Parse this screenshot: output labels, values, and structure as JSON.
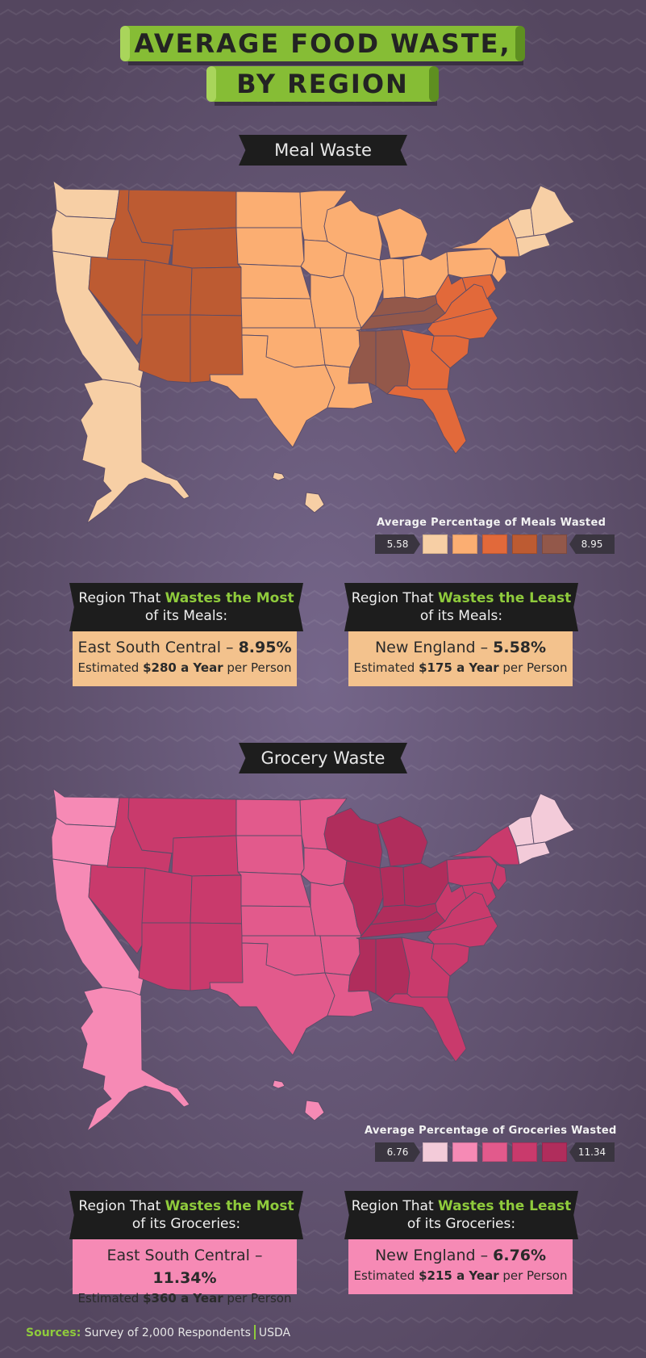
{
  "title": {
    "line1": "AVERAGE FOOD WASTE,",
    "line2": "BY REGION"
  },
  "sections": [
    {
      "tag": "Meal Waste",
      "legend": {
        "title": "Average Percentage of Meals Wasted",
        "min": "5.58",
        "max": "8.95",
        "colors": [
          "#f7cfa5",
          "#fbae72",
          "#e2693a",
          "#bd5b32",
          "#93584a"
        ]
      },
      "region_colors": {
        "pacific": "#f7cfa5",
        "mountain": "#bd5b32",
        "wnc": "#fbae72",
        "enc": "#fbae72",
        "wsc": "#fbae72",
        "esc": "#93584a",
        "sa": "#e2693a",
        "mid": "#fbae72",
        "ne": "#f7cfa5"
      },
      "most": {
        "head_pre": "Region That ",
        "head_em": "Wastes the Most",
        "head_post": "of its Meals:",
        "main_pre": "East South Central – ",
        "main_val": "8.95%",
        "sub_pre": "Estimated ",
        "sub_em": "$280 a Year",
        "sub_post": " per Person",
        "bg": "#f3c28d"
      },
      "least": {
        "head_pre": "Region That ",
        "head_em": "Wastes the Least",
        "head_post": "of its Meals:",
        "main_pre": "New England – ",
        "main_val": "5.58%",
        "sub_pre": "Estimated ",
        "sub_em": "$175 a Year",
        "sub_post": " per Person",
        "bg": "#f3c28d"
      }
    },
    {
      "tag": "Grocery Waste",
      "legend": {
        "title": "Average Percentage of Groceries Wasted",
        "min": "6.76",
        "max": "11.34",
        "colors": [
          "#f3cbd9",
          "#f68ab5",
          "#e25a8c",
          "#c93a6c",
          "#b02d5c"
        ]
      },
      "region_colors": {
        "pacific": "#f68ab5",
        "mountain": "#c93a6c",
        "wnc": "#e25a8c",
        "enc": "#b02d5c",
        "wsc": "#e25a8c",
        "esc": "#b02d5c",
        "sa": "#c93a6c",
        "mid": "#c93a6c",
        "ne": "#f3cbd9"
      },
      "most": {
        "head_pre": "Region That ",
        "head_em": "Wastes the Most",
        "head_post": "of its Groceries:",
        "main_pre": "East South Central – ",
        "main_val": "11.34%",
        "sub_pre": "Estimated ",
        "sub_em": "$360 a Year",
        "sub_post": " per Person",
        "bg": "#f68ab5"
      },
      "least": {
        "head_pre": "Region That ",
        "head_em": "Wastes the Least",
        "head_post": "of its Groceries:",
        "main_pre": "New England – ",
        "main_val": "6.76%",
        "sub_pre": "Estimated ",
        "sub_em": "$215 a Year",
        "sub_post": " per Person",
        "bg": "#f68ab5"
      }
    }
  ],
  "sources": {
    "label": "Sources:",
    "item1": "Survey of 2,000 Respondents",
    "item2": "USDA"
  }
}
